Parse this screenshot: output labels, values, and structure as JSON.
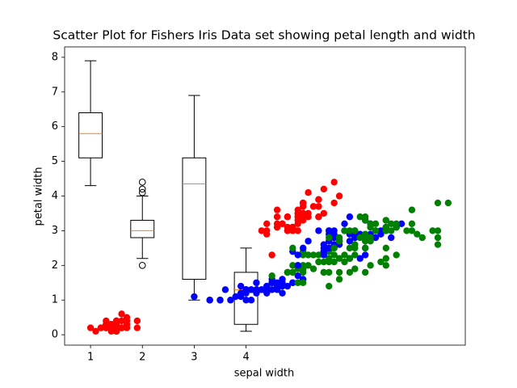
{
  "chart_data": {
    "type": "scatter",
    "title": "Scatter Plot for Fishers Iris Data set showing petal length and width",
    "x_label": "sepal width",
    "y_label": "petal width",
    "xlim": [
      0.5,
      8.23
    ],
    "ylim": [
      -0.3,
      8.3
    ],
    "xticks": [
      1,
      2,
      3,
      4
    ],
    "yticks": [
      0,
      1,
      2,
      3,
      4,
      5,
      6,
      7,
      8
    ],
    "boxes": [
      {
        "q1": 5.1,
        "median": 5.8,
        "q3": 6.4,
        "whisker_low": 4.3,
        "whisker_high": 7.9,
        "fliers": []
      },
      {
        "q1": 2.8,
        "median": 3.0,
        "q3": 3.3,
        "whisker_low": 2.2,
        "whisker_high": 4.0,
        "fliers": [
          4.4,
          4.1,
          4.2,
          2.0
        ]
      },
      {
        "q1": 1.6,
        "median": 4.35,
        "q3": 5.1,
        "whisker_low": 1.0,
        "whisker_high": 6.9,
        "fliers": []
      },
      {
        "q1": 0.3,
        "median": 1.3,
        "q3": 1.8,
        "whisker_low": 0.1,
        "whisker_high": 2.5,
        "fliers": []
      }
    ],
    "series": [
      {
        "color": "#ff0000",
        "x": [
          1.4,
          1.4,
          1.3,
          1.5,
          1.4,
          1.7,
          1.4,
          1.5,
          1.4,
          1.5,
          1.5,
          1.6,
          1.4,
          1.1,
          1.2,
          1.5,
          1.3,
          1.4,
          1.7,
          1.5,
          1.7,
          1.5,
          1.0,
          1.7,
          1.9,
          1.6,
          1.6,
          1.5,
          1.4,
          1.6,
          1.6,
          1.5,
          1.5,
          1.4,
          1.5,
          1.2,
          1.3,
          1.5,
          1.3,
          1.5,
          1.3,
          1.3,
          1.3,
          1.6,
          1.9,
          1.4,
          1.6,
          1.4,
          1.5,
          1.4
        ],
        "values": [
          0.2,
          0.2,
          0.2,
          0.2,
          0.2,
          0.4,
          0.3,
          0.2,
          0.2,
          0.1,
          0.2,
          0.2,
          0.1,
          0.1,
          0.2,
          0.4,
          0.4,
          0.3,
          0.3,
          0.3,
          0.2,
          0.4,
          0.2,
          0.5,
          0.2,
          0.2,
          0.4,
          0.2,
          0.2,
          0.2,
          0.2,
          0.4,
          0.1,
          0.2,
          0.1,
          0.2,
          0.2,
          0.1,
          0.2,
          0.2,
          0.3,
          0.3,
          0.2,
          0.6,
          0.4,
          0.3,
          0.2,
          0.2,
          0.2,
          0.2
        ]
      },
      {
        "color": "#0000ff",
        "x": [
          4.7,
          4.5,
          4.9,
          4.0,
          4.6,
          4.5,
          4.7,
          3.3,
          4.6,
          3.9,
          3.5,
          4.2,
          4.0,
          4.7,
          3.6,
          4.4,
          4.5,
          4.1,
          4.5,
          3.9,
          4.8,
          4.0,
          4.9,
          4.7,
          4.3,
          4.4,
          4.8,
          5.0,
          4.5,
          3.5,
          3.8,
          3.7,
          3.9,
          5.1,
          4.5,
          4.5,
          4.7,
          4.4,
          4.1,
          4.0,
          4.4,
          4.6,
          4.0,
          3.3,
          4.2,
          4.2,
          4.2,
          4.3,
          3.0,
          4.1
        ],
        "values": [
          1.4,
          1.5,
          1.5,
          1.3,
          1.5,
          1.3,
          1.6,
          1.0,
          1.3,
          1.4,
          1.0,
          1.5,
          1.0,
          1.4,
          1.3,
          1.4,
          1.5,
          1.0,
          1.5,
          1.1,
          1.8,
          1.3,
          1.5,
          1.2,
          1.3,
          1.4,
          1.4,
          1.7,
          1.5,
          1.0,
          1.1,
          1.0,
          1.2,
          1.6,
          1.5,
          1.6,
          1.5,
          1.3,
          1.3,
          1.3,
          1.2,
          1.4,
          1.2,
          1.0,
          1.3,
          1.2,
          1.3,
          1.3,
          1.1,
          1.3
        ]
      },
      {
        "color": "#008000",
        "x": [
          6.0,
          5.1,
          5.9,
          5.6,
          5.8,
          6.6,
          4.5,
          6.3,
          5.8,
          6.1,
          5.1,
          5.3,
          5.5,
          5.0,
          5.1,
          5.3,
          5.5,
          6.7,
          6.9,
          5.0,
          5.7,
          4.9,
          6.7,
          4.9,
          5.7,
          6.0,
          4.8,
          4.9,
          5.6,
          5.8,
          6.1,
          6.4,
          5.6,
          5.1,
          5.6,
          6.1,
          5.6,
          5.5,
          4.8,
          5.4,
          5.6,
          5.1,
          5.1,
          5.9,
          5.7,
          5.2,
          5.0,
          5.2,
          5.4,
          5.1
        ],
        "values": [
          2.5,
          1.9,
          2.1,
          1.8,
          2.2,
          2.1,
          1.7,
          1.8,
          1.8,
          2.5,
          2.0,
          1.9,
          2.1,
          2.0,
          2.4,
          2.3,
          1.8,
          2.2,
          2.3,
          1.5,
          2.3,
          2.0,
          2.0,
          1.8,
          2.1,
          1.8,
          1.8,
          1.8,
          2.1,
          1.6,
          1.9,
          2.0,
          2.2,
          1.5,
          1.4,
          2.3,
          2.4,
          1.8,
          1.8,
          2.1,
          2.4,
          2.3,
          1.9,
          2.3,
          2.5,
          2.3,
          1.9,
          2.0,
          2.3,
          1.8
        ]
      },
      {
        "color": "#ff0000",
        "x": [
          5.1,
          4.9,
          4.7,
          4.6,
          5.0,
          5.4,
          4.6,
          5.0,
          4.4,
          4.9,
          5.4,
          4.8,
          4.8,
          4.3,
          5.8,
          5.7,
          5.4,
          5.1,
          5.7,
          5.1,
          5.4,
          5.1,
          4.6,
          5.1,
          4.8,
          5.0,
          5.0,
          5.2,
          5.2,
          4.7,
          4.8,
          5.4,
          5.2,
          5.5,
          4.9,
          5.0,
          5.5,
          4.9,
          4.4,
          5.1,
          5.0,
          4.5,
          4.4,
          5.0,
          5.1,
          4.8,
          5.1,
          4.6,
          5.3,
          5.0
        ],
        "values": [
          3.5,
          3.0,
          3.2,
          3.1,
          3.6,
          3.9,
          3.4,
          3.4,
          2.9,
          3.1,
          3.7,
          3.4,
          3.0,
          3.0,
          4.0,
          4.4,
          3.9,
          3.5,
          3.8,
          3.8,
          3.4,
          3.7,
          3.6,
          3.3,
          3.4,
          3.0,
          3.4,
          3.5,
          3.4,
          3.2,
          3.1,
          3.4,
          4.1,
          4.2,
          3.1,
          3.2,
          3.5,
          3.1,
          3.0,
          3.4,
          3.5,
          2.3,
          3.2,
          3.5,
          3.8,
          3.0,
          3.8,
          3.2,
          3.7,
          3.3
        ]
      },
      {
        "color": "#0000ff",
        "x": [
          7.0,
          6.4,
          6.9,
          5.5,
          6.5,
          5.7,
          6.3,
          4.9,
          6.6,
          5.2,
          5.0,
          5.9,
          6.0,
          6.1,
          5.6,
          6.7,
          5.6,
          5.8,
          6.2,
          5.6,
          5.9,
          6.1,
          6.3,
          6.1,
          6.4,
          6.6,
          6.8,
          6.7,
          6.0,
          5.7,
          5.5,
          5.5,
          5.8,
          6.0,
          5.4,
          6.0,
          6.7,
          6.3,
          5.6,
          5.5,
          5.5,
          6.1,
          5.8,
          5.0,
          5.6,
          5.7,
          5.7,
          6.2,
          5.1,
          5.7
        ],
        "values": [
          3.2,
          3.2,
          3.1,
          2.3,
          2.8,
          2.8,
          3.3,
          2.4,
          2.9,
          2.7,
          2.0,
          3.0,
          2.2,
          2.9,
          2.9,
          3.1,
          3.0,
          2.7,
          2.2,
          2.5,
          3.2,
          2.8,
          2.5,
          2.8,
          2.9,
          3.0,
          2.8,
          3.0,
          2.9,
          2.6,
          2.4,
          2.4,
          2.7,
          2.7,
          3.0,
          3.4,
          3.1,
          2.3,
          3.0,
          2.5,
          2.6,
          3.0,
          2.6,
          2.3,
          2.7,
          3.0,
          2.9,
          2.9,
          2.5,
          2.8
        ]
      },
      {
        "color": "#008000",
        "x": [
          6.3,
          5.8,
          7.1,
          6.3,
          6.5,
          7.6,
          4.9,
          7.3,
          6.7,
          7.2,
          6.5,
          6.4,
          6.8,
          5.7,
          5.8,
          6.4,
          6.5,
          7.7,
          7.7,
          6.0,
          6.9,
          5.6,
          7.7,
          6.3,
          6.7,
          7.2,
          6.2,
          6.1,
          6.4,
          7.2,
          7.4,
          7.9,
          6.4,
          6.3,
          6.1,
          7.7,
          6.3,
          6.4,
          6.0,
          6.9,
          6.7,
          6.9,
          5.8,
          6.8,
          6.7,
          6.7,
          6.3,
          6.5,
          6.2,
          5.9
        ],
        "values": [
          3.3,
          2.7,
          3.0,
          2.9,
          3.0,
          3.0,
          2.5,
          2.9,
          2.5,
          3.6,
          3.2,
          2.7,
          3.0,
          2.5,
          2.8,
          3.2,
          3.0,
          3.8,
          2.6,
          2.2,
          3.2,
          2.8,
          2.8,
          2.7,
          3.3,
          3.2,
          2.8,
          3.0,
          2.8,
          3.0,
          2.8,
          3.8,
          2.8,
          2.8,
          2.6,
          3.0,
          3.4,
          3.1,
          3.0,
          3.1,
          3.1,
          3.1,
          2.7,
          3.2,
          3.3,
          3.0,
          2.5,
          3.0,
          3.4,
          3.0
        ]
      }
    ]
  }
}
